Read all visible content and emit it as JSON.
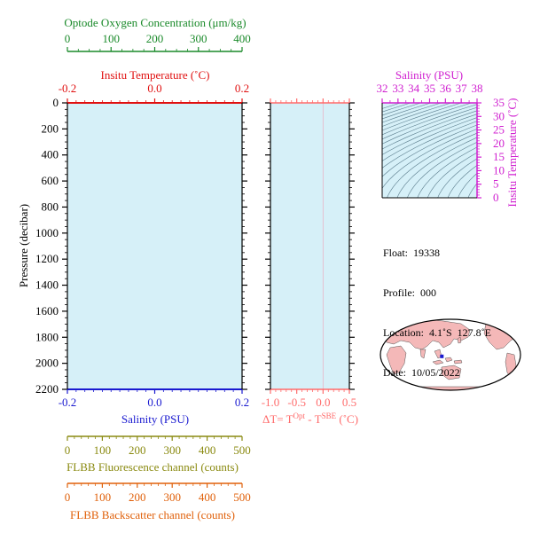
{
  "colors": {
    "panel_fill": "#d6f0f8",
    "oxygen": "#1a8a2a",
    "temperature": "#e01010",
    "salinity": "#1a1ad0",
    "delta_t": "#ff6b6b",
    "fluorescence": "#8a8a10",
    "backscatter": "#e0600a",
    "ts_axes": "#d020d0",
    "frame": "#000000",
    "map_ocean": "#ffffff",
    "map_land": "#f4b8b8"
  },
  "chart_data": [
    {
      "id": "profile_panel",
      "type": "line",
      "series": [],
      "ylabel": "Pressure (decibar)",
      "y_range": [
        0,
        2200
      ],
      "y_ticks": [
        "0",
        "200",
        "400",
        "600",
        "800",
        "1000",
        "1200",
        "1400",
        "1600",
        "1800",
        "2000",
        "2200"
      ],
      "y_inverted": true,
      "axes": {
        "oxygen": {
          "label": "Optode Oxygen Concentration (μm/kg)",
          "range": [
            0,
            400
          ],
          "ticks": [
            "0",
            "100",
            "200",
            "300",
            "400"
          ],
          "position": "top-outer"
        },
        "temperature": {
          "label": "Insitu Temperature (˚C)",
          "range": [
            -0.2,
            0.2
          ],
          "ticks": [
            "-0.2",
            "0.0",
            "0.2"
          ],
          "position": "top"
        },
        "salinity": {
          "label": "Salinity (PSU)",
          "range": [
            -0.2,
            0.2
          ],
          "ticks": [
            "-0.2",
            "0.0",
            "0.2"
          ],
          "position": "bottom"
        },
        "fluorescence": {
          "label": "FLBB Fluorescence channel (counts)",
          "range": [
            0,
            500
          ],
          "ticks": [
            "0",
            "100",
            "200",
            "300",
            "400",
            "500"
          ],
          "position": "bottom-outer"
        },
        "backscatter": {
          "label": "FLBB Backscatter channel (counts)",
          "range": [
            0,
            500
          ],
          "ticks": [
            "0",
            "100",
            "200",
            "300",
            "400",
            "500"
          ],
          "position": "bottom-outer-2"
        }
      }
    },
    {
      "id": "delta_t_panel",
      "type": "line",
      "series": [],
      "xlabel_parts": [
        "ΔT= T",
        "Opt",
        " - T",
        "SBE",
        " (˚C)"
      ],
      "x_range": [
        -1.0,
        0.5
      ],
      "x_ticks": [
        "-1.0",
        "-0.5",
        "0.0",
        "0.5"
      ],
      "y_range": [
        0,
        2200
      ]
    },
    {
      "id": "ts_diagram",
      "type": "line",
      "series": [],
      "xlabel": "Salinity (PSU)",
      "x_range": [
        32,
        38
      ],
      "x_ticks": [
        "32",
        "33",
        "34",
        "35",
        "36",
        "37",
        "38"
      ],
      "ylabel": "Insitu Temperature (˚C)",
      "y_range": [
        0,
        35
      ],
      "y_ticks": [
        "0",
        "5",
        "10",
        "15",
        "20",
        "25",
        "30",
        "35"
      ],
      "density_contours": true
    }
  ],
  "float_info": {
    "float": "Float:  19338",
    "profile": "Profile:  000",
    "location": "Location:  4.1˚S  127.8˚E",
    "date": "Date:  10/05/2022"
  },
  "map": {
    "marker_lat": -4.1,
    "marker_lon": 127.8,
    "marker_color": "#1a1ad0"
  }
}
